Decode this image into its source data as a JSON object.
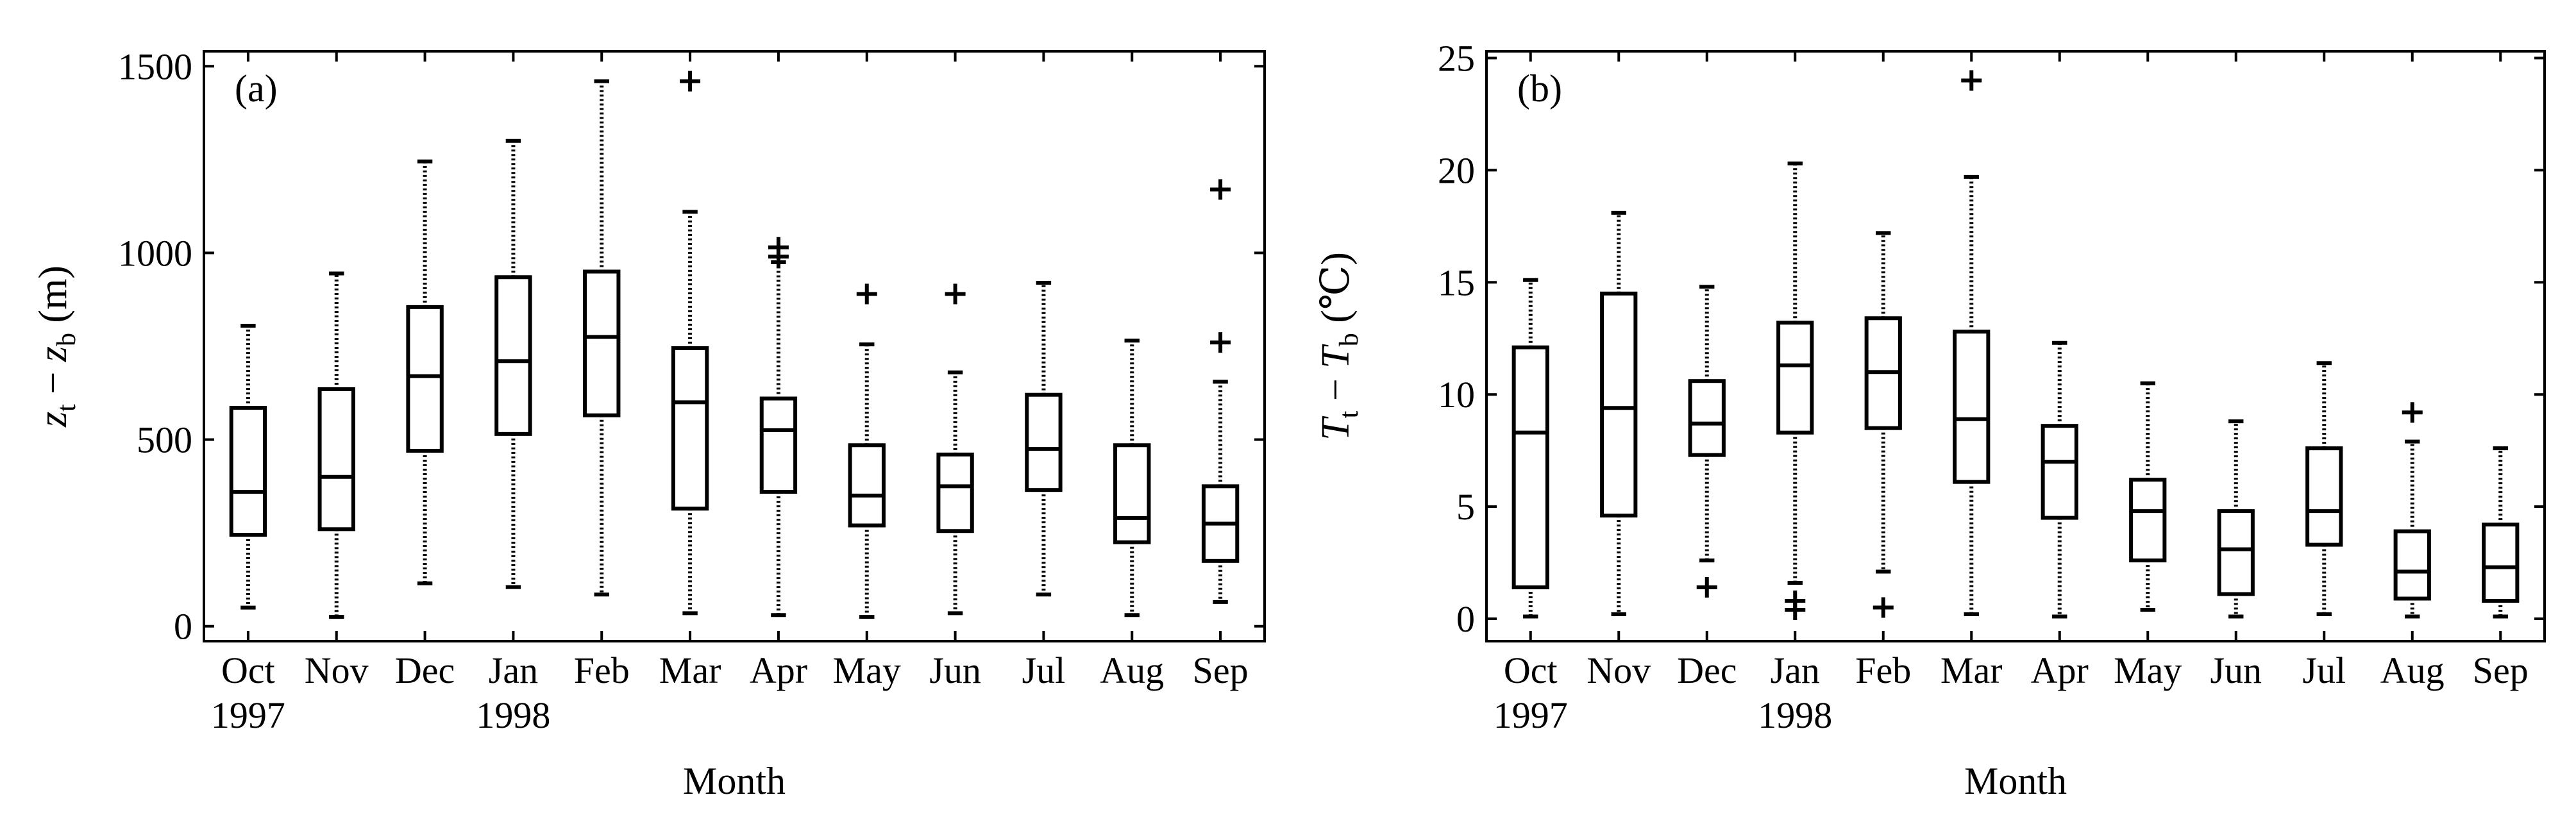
{
  "chart_data": [
    {
      "type": "box",
      "panel_label": "(a)",
      "ylabel": {
        "var1": "z",
        "sub1": "t",
        "op": " − ",
        "var2": "z",
        "sub2": "b",
        "unit": " (m)"
      },
      "xlabel": "Month",
      "categories": [
        "Oct",
        "Nov",
        "Dec",
        "Jan",
        "Feb",
        "Mar",
        "Apr",
        "May",
        "Jun",
        "Jul",
        "Aug",
        "Sep"
      ],
      "year_labels": [
        {
          "index": 0,
          "text": "1997"
        },
        {
          "index": 3,
          "text": "1998"
        }
      ],
      "ylim": [
        -40,
        1540
      ],
      "yticks": [
        0,
        500,
        1000,
        1500
      ],
      "boxes": [
        {
          "min": 50,
          "q1": 245,
          "median": 360,
          "q3": 585,
          "max": 805,
          "outliers": []
        },
        {
          "min": 25,
          "q1": 260,
          "median": 400,
          "q3": 635,
          "max": 945,
          "outliers": []
        },
        {
          "min": 115,
          "q1": 470,
          "median": 670,
          "q3": 855,
          "max": 1245,
          "outliers": []
        },
        {
          "min": 105,
          "q1": 515,
          "median": 710,
          "q3": 935,
          "max": 1300,
          "outliers": []
        },
        {
          "min": 85,
          "q1": 565,
          "median": 775,
          "q3": 950,
          "max": 1460,
          "outliers": []
        },
        {
          "min": 35,
          "q1": 315,
          "median": 600,
          "q3": 745,
          "max": 1110,
          "outliers": [
            1460
          ]
        },
        {
          "min": 30,
          "q1": 360,
          "median": 525,
          "q3": 610,
          "max": 975,
          "outliers": [
            990,
            1015
          ]
        },
        {
          "min": 25,
          "q1": 270,
          "median": 350,
          "q3": 485,
          "max": 755,
          "outliers": [
            890
          ]
        },
        {
          "min": 35,
          "q1": 255,
          "median": 375,
          "q3": 460,
          "max": 680,
          "outliers": [
            890
          ]
        },
        {
          "min": 85,
          "q1": 365,
          "median": 475,
          "q3": 620,
          "max": 920,
          "outliers": []
        },
        {
          "min": 30,
          "q1": 225,
          "median": 290,
          "q3": 485,
          "max": 765,
          "outliers": []
        },
        {
          "min": 65,
          "q1": 175,
          "median": 275,
          "q3": 375,
          "max": 655,
          "outliers": [
            760,
            1170
          ]
        }
      ]
    },
    {
      "type": "box",
      "panel_label": "(b)",
      "ylabel": {
        "var1": "T",
        "sub1": "t",
        "op": " − ",
        "var2": "T",
        "sub2": "b",
        "unit": " (℃)"
      },
      "xlabel": "Month",
      "categories": [
        "Oct",
        "Nov",
        "Dec",
        "Jan",
        "Feb",
        "Mar",
        "Apr",
        "May",
        "Jun",
        "Jul",
        "Aug",
        "Sep"
      ],
      "year_labels": [
        {
          "index": 0,
          "text": "1997"
        },
        {
          "index": 3,
          "text": "1998"
        }
      ],
      "ylim": [
        -1,
        25.3
      ],
      "yticks": [
        0,
        5,
        10,
        15,
        20,
        25
      ],
      "boxes": [
        {
          "min": 0.1,
          "q1": 1.4,
          "median": 8.3,
          "q3": 12.1,
          "max": 15.1,
          "outliers": []
        },
        {
          "min": 0.2,
          "q1": 4.6,
          "median": 9.4,
          "q3": 14.5,
          "max": 18.1,
          "outliers": []
        },
        {
          "min": 2.6,
          "q1": 7.3,
          "median": 8.7,
          "q3": 10.6,
          "max": 14.8,
          "outliers": [
            1.4
          ]
        },
        {
          "min": 1.6,
          "q1": 8.3,
          "median": 11.3,
          "q3": 13.2,
          "max": 20.3,
          "outliers": [
            0.4,
            0.8
          ]
        },
        {
          "min": 2.1,
          "q1": 8.5,
          "median": 11.0,
          "q3": 13.4,
          "max": 17.2,
          "outliers": [
            0.5
          ]
        },
        {
          "min": 0.2,
          "q1": 6.1,
          "median": 8.9,
          "q3": 12.8,
          "max": 19.7,
          "outliers": [
            24.0
          ]
        },
        {
          "min": 0.1,
          "q1": 4.5,
          "median": 7.0,
          "q3": 8.6,
          "max": 12.3,
          "outliers": []
        },
        {
          "min": 0.4,
          "q1": 2.6,
          "median": 4.8,
          "q3": 6.2,
          "max": 10.5,
          "outliers": []
        },
        {
          "min": 0.1,
          "q1": 1.1,
          "median": 3.1,
          "q3": 4.8,
          "max": 8.8,
          "outliers": []
        },
        {
          "min": 0.2,
          "q1": 3.3,
          "median": 4.8,
          "q3": 7.6,
          "max": 11.4,
          "outliers": []
        },
        {
          "min": 0.1,
          "q1": 0.9,
          "median": 2.1,
          "q3": 3.9,
          "max": 7.9,
          "outliers": [
            9.2
          ]
        },
        {
          "min": 0.1,
          "q1": 0.8,
          "median": 2.3,
          "q3": 4.2,
          "max": 7.6,
          "outliers": []
        }
      ]
    }
  ]
}
